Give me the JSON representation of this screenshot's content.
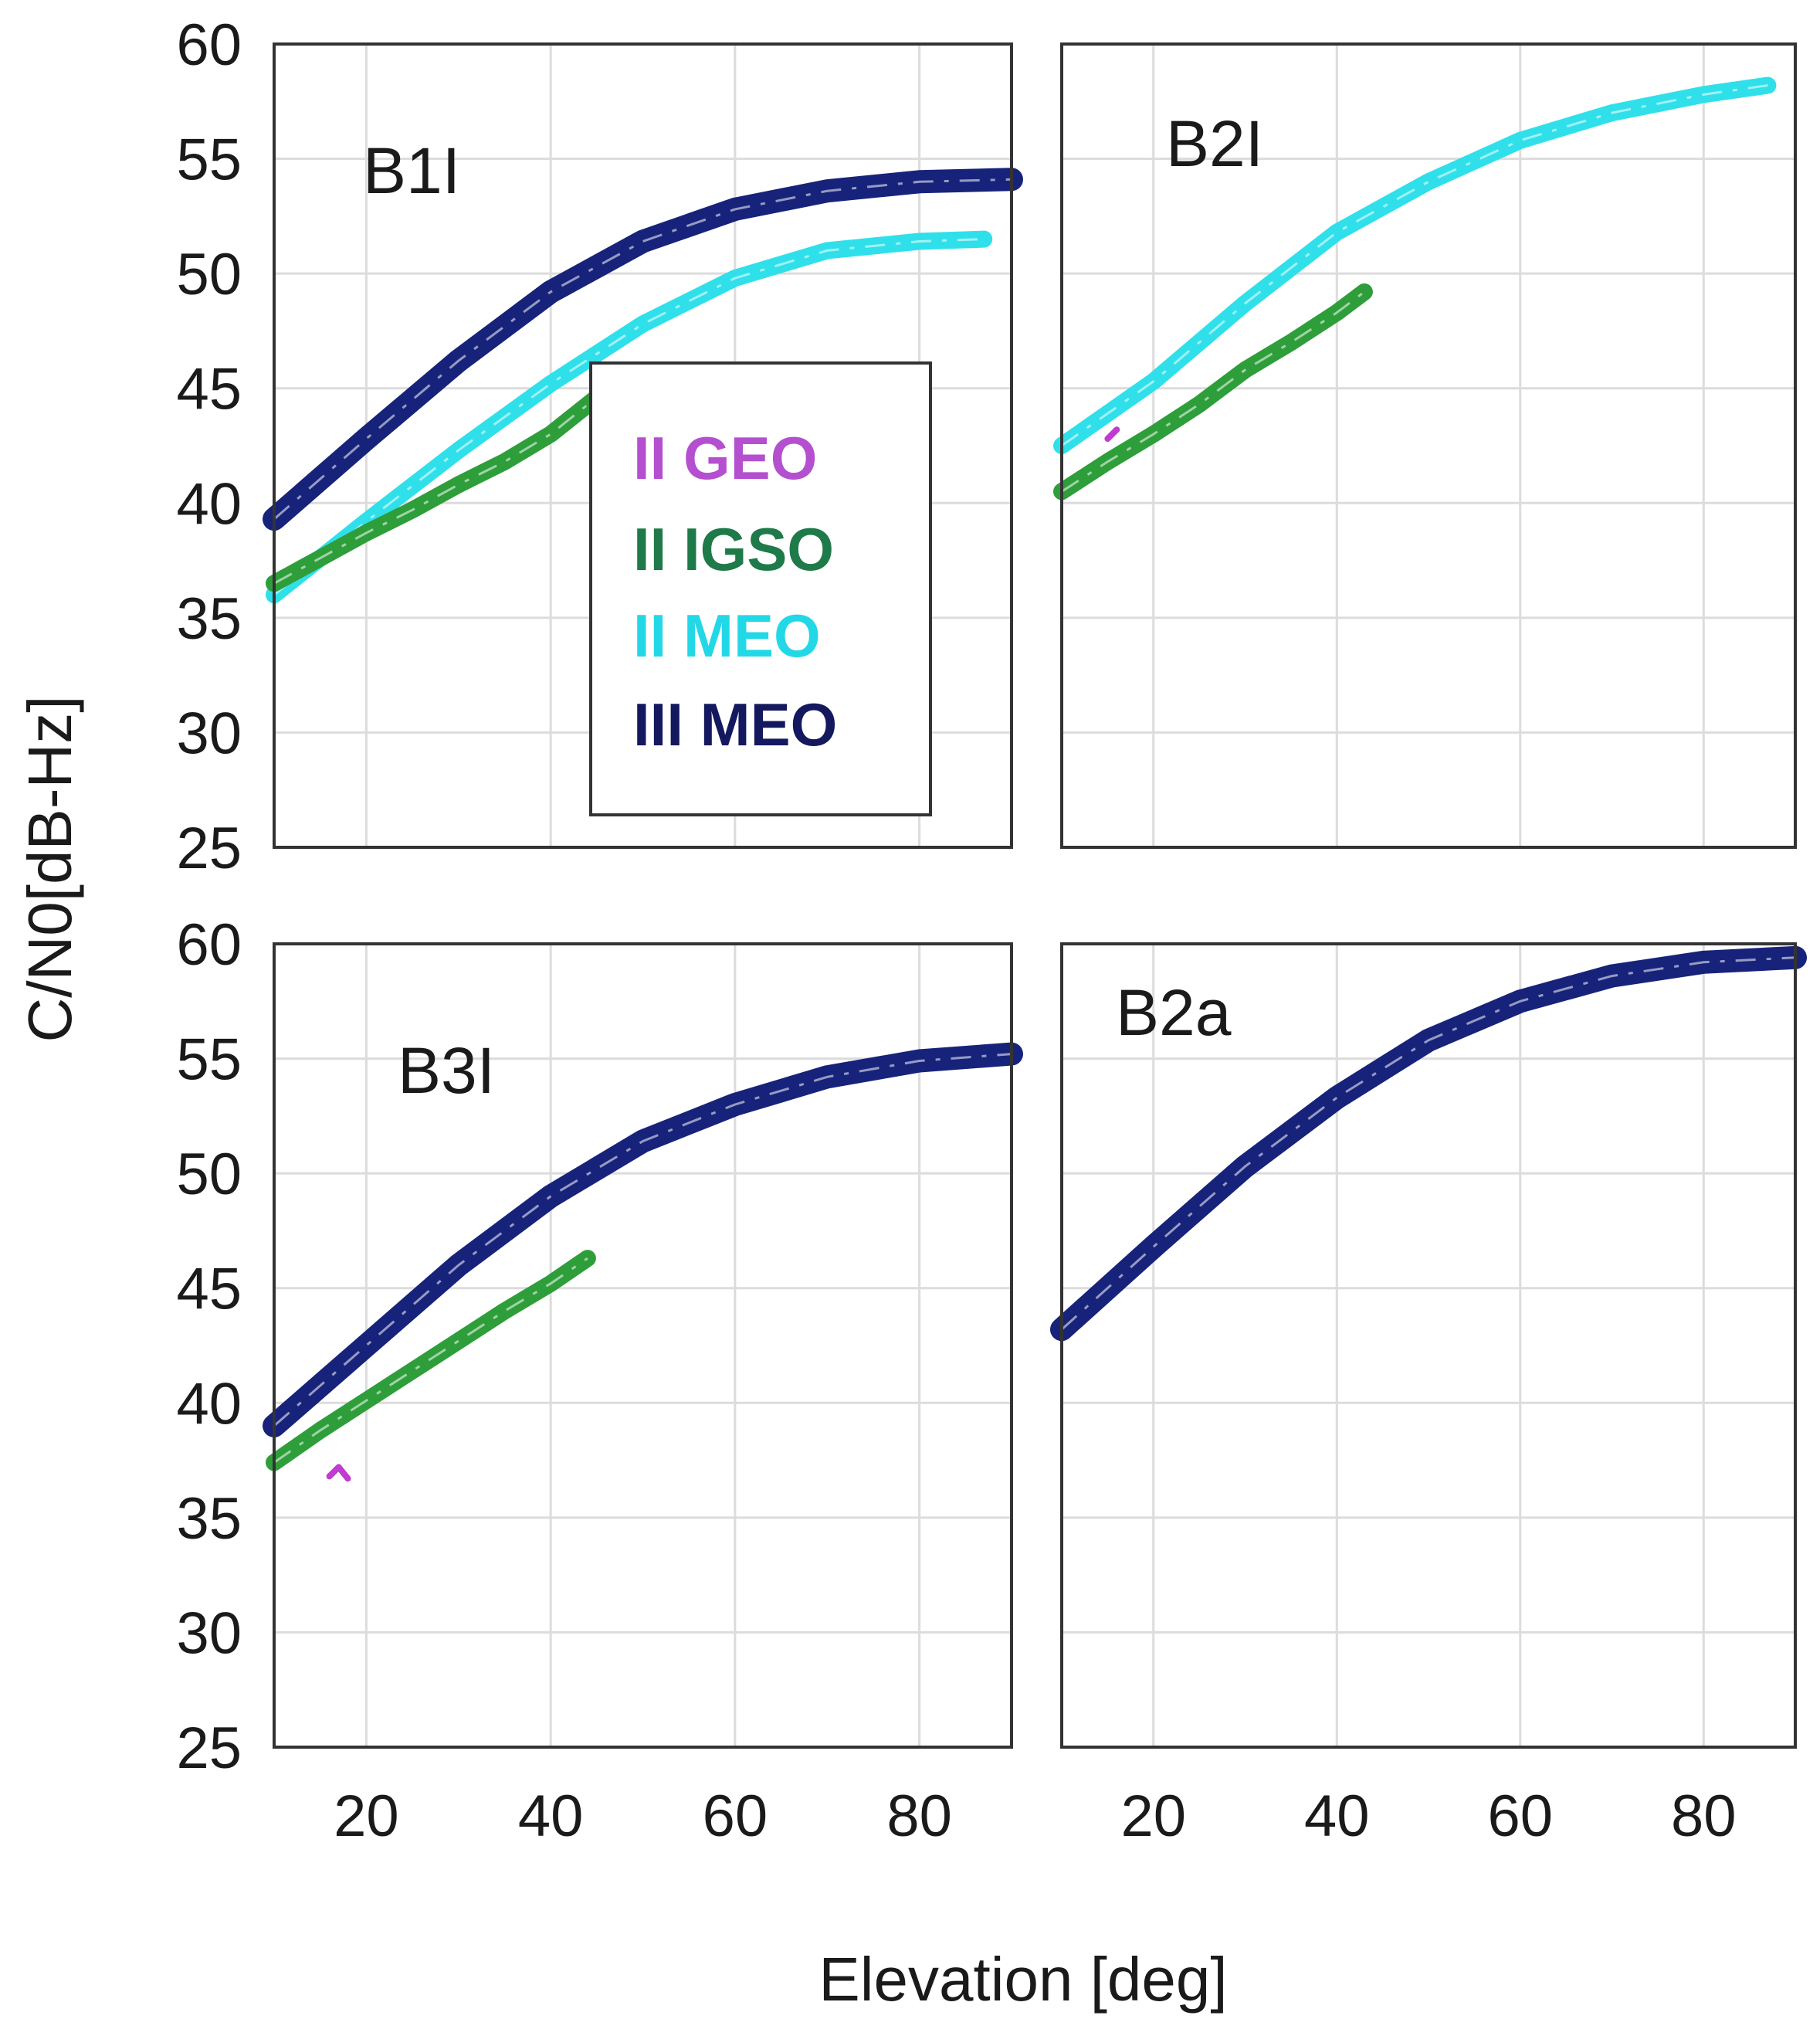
{
  "figure": {
    "ylabel": "C/N0[dB-Hz]",
    "xlabel": "Elevation [deg]"
  },
  "legend": {
    "entries": [
      {
        "label": "II GEO",
        "color": "#b44fcf"
      },
      {
        "label": "II IGSO",
        "color": "#1f7a4a"
      },
      {
        "label": "II MEO",
        "color": "#22d8e6"
      },
      {
        "label": "III MEO",
        "color": "#14185e"
      }
    ]
  },
  "series_styles": {
    "II GEO": {
      "color": "#c13ad1"
    },
    "II IGSO": {
      "color": "#2e9e3a"
    },
    "II MEO": {
      "color": "#2fe0ea"
    },
    "III MEO": {
      "color": "#17237a"
    }
  },
  "chart_data": [
    {
      "type": "line",
      "panel_label": "B1I",
      "xlim": [
        10,
        90
      ],
      "ylim": [
        25,
        60
      ],
      "xticks": [
        20,
        40,
        60,
        80
      ],
      "yticks": [
        25,
        30,
        35,
        40,
        45,
        50,
        55,
        60
      ],
      "grid": true,
      "series": [
        {
          "name": "III MEO",
          "x": [
            10,
            20,
            30,
            40,
            50,
            60,
            70,
            80,
            90
          ],
          "y": [
            39.3,
            42.8,
            46.2,
            49.2,
            51.4,
            52.8,
            53.6,
            54.0,
            54.1
          ]
        },
        {
          "name": "II MEO",
          "x": [
            10,
            20,
            30,
            40,
            50,
            60,
            70,
            80,
            87
          ],
          "y": [
            36.0,
            39.2,
            42.3,
            45.2,
            47.8,
            49.8,
            51.0,
            51.4,
            51.5
          ]
        },
        {
          "name": "II IGSO",
          "x": [
            10,
            15,
            20,
            25,
            30,
            35,
            40,
            45
          ],
          "y": [
            36.5,
            37.6,
            38.7,
            39.7,
            40.8,
            41.8,
            43.0,
            44.6
          ]
        }
      ]
    },
    {
      "type": "line",
      "panel_label": "B2I",
      "xlim": [
        10,
        90
      ],
      "ylim": [
        25,
        60
      ],
      "xticks": [
        20,
        40,
        60,
        80
      ],
      "yticks": [
        25,
        30,
        35,
        40,
        45,
        50,
        55,
        60
      ],
      "grid": true,
      "series": [
        {
          "name": "II MEO",
          "x": [
            10,
            20,
            30,
            40,
            50,
            60,
            70,
            80,
            87
          ],
          "y": [
            42.5,
            45.3,
            48.7,
            51.8,
            54.0,
            55.8,
            57.0,
            57.8,
            58.2
          ]
        },
        {
          "name": "II IGSO",
          "x": [
            10,
            15,
            20,
            25,
            30,
            35,
            40,
            43
          ],
          "y": [
            40.5,
            41.8,
            43.0,
            44.3,
            45.8,
            47.0,
            48.3,
            49.2
          ]
        },
        {
          "name": "II GEO",
          "x": [
            15,
            16
          ],
          "y": [
            42.8,
            43.2
          ]
        }
      ]
    },
    {
      "type": "line",
      "panel_label": "B3I",
      "xlim": [
        10,
        90
      ],
      "ylim": [
        25,
        60
      ],
      "xticks": [
        20,
        40,
        60,
        80
      ],
      "yticks": [
        25,
        30,
        35,
        40,
        45,
        50,
        55,
        60
      ],
      "grid": true,
      "series": [
        {
          "name": "III MEO",
          "x": [
            10,
            20,
            30,
            40,
            50,
            60,
            70,
            80,
            90
          ],
          "y": [
            39.0,
            42.5,
            46.0,
            49.0,
            51.4,
            53.0,
            54.2,
            54.9,
            55.2
          ]
        },
        {
          "name": "II IGSO",
          "x": [
            10,
            15,
            20,
            25,
            30,
            35,
            40,
            44
          ],
          "y": [
            37.4,
            38.8,
            40.1,
            41.4,
            42.7,
            44.0,
            45.2,
            46.3
          ]
        },
        {
          "name": "II GEO",
          "x": [
            16,
            17,
            18
          ],
          "y": [
            36.8,
            37.2,
            36.7
          ]
        }
      ]
    },
    {
      "type": "line",
      "panel_label": "B2a",
      "xlim": [
        10,
        90
      ],
      "ylim": [
        25,
        60
      ],
      "xticks": [
        20,
        40,
        60,
        80
      ],
      "yticks": [
        25,
        30,
        35,
        40,
        45,
        50,
        55,
        60
      ],
      "grid": true,
      "series": [
        {
          "name": "III MEO",
          "x": [
            10,
            20,
            30,
            40,
            50,
            60,
            70,
            80,
            90
          ],
          "y": [
            43.2,
            46.8,
            50.3,
            53.3,
            55.8,
            57.5,
            58.6,
            59.2,
            59.4
          ]
        }
      ]
    }
  ]
}
